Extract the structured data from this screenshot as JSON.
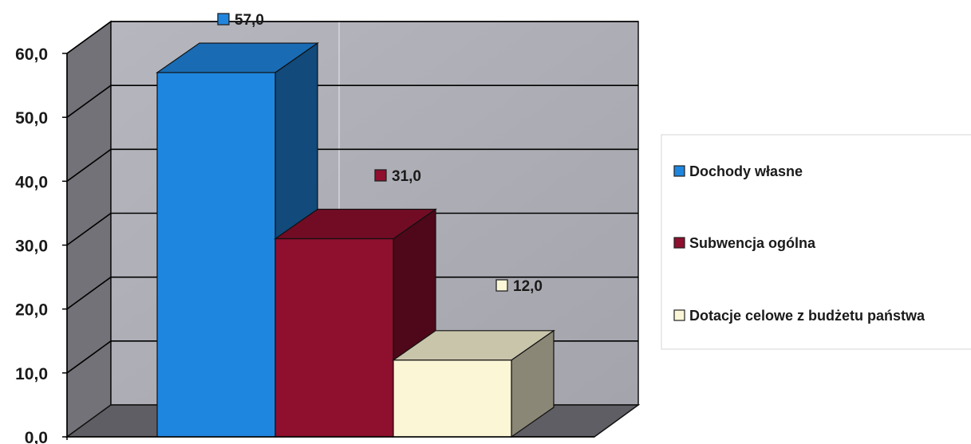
{
  "chart_data": {
    "type": "bar",
    "three_d": true,
    "categories": [
      "Dochody własne",
      "Subwencja ogólna",
      "Dotacje celowe z budżetu państwa"
    ],
    "values": [
      57.0,
      31.0,
      12.0
    ],
    "value_labels": [
      "57,0",
      "31,0",
      "12,0"
    ],
    "colors": [
      "#1f86e0",
      "#8e0f2e",
      "#fbf6d6"
    ],
    "ylim": [
      0,
      60
    ],
    "yticks": [
      0,
      10,
      20,
      30,
      40,
      50,
      60
    ],
    "ytick_labels": [
      "0,0",
      "10,0",
      "20,0",
      "30,0",
      "40,0",
      "50,0",
      "60,0"
    ],
    "grid": true,
    "legend": {
      "position": "right",
      "entries": [
        "Dochody własne",
        "Subwencja ogólna",
        "Dotacje celowe z budżetu państwa"
      ]
    },
    "title": "",
    "xlabel": "",
    "ylabel": ""
  }
}
